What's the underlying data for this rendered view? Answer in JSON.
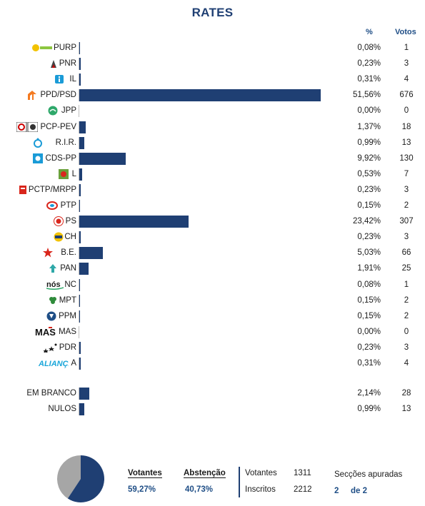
{
  "title": "RATES",
  "columns": {
    "pct": "%",
    "votes": "Votos"
  },
  "colors": {
    "bar": "#1f3f73",
    "pie_votantes": "#1f3f73",
    "pie_abstencao": "#a6a6a6"
  },
  "chart_data": {
    "type": "bar",
    "orientation": "horizontal",
    "title": "RATES",
    "categories": [
      "PURP",
      "PNR",
      "IL",
      "PPD/PSD",
      "JPP",
      "PCP-PEV",
      "R.I.R.",
      "CDS-PP",
      "L",
      "PCTP/MRPP",
      "PTP",
      "PS",
      "CH",
      "B.E.",
      "PAN",
      "NC",
      "MPT",
      "PPM",
      "MAS",
      "PDR",
      "A",
      "EM BRANCO",
      "NULOS"
    ],
    "percent_labels": [
      "0,08%",
      "0,23%",
      "0,31%",
      "51,56%",
      "0,00%",
      "1,37%",
      "0,99%",
      "9,92%",
      "0,53%",
      "0,23%",
      "0,15%",
      "23,42%",
      "0,23%",
      "5,03%",
      "1,91%",
      "0,08%",
      "0,15%",
      "0,15%",
      "0,00%",
      "0,23%",
      "0,31%",
      "2,14%",
      "0,99%"
    ],
    "values": [
      0.08,
      0.23,
      0.31,
      51.56,
      0.0,
      1.37,
      0.99,
      9.92,
      0.53,
      0.23,
      0.15,
      23.42,
      0.23,
      5.03,
      1.91,
      0.08,
      0.15,
      0.15,
      0.0,
      0.23,
      0.31,
      2.14,
      0.99
    ],
    "votes": [
      1,
      3,
      4,
      676,
      0,
      18,
      13,
      130,
      7,
      3,
      2,
      307,
      3,
      66,
      25,
      1,
      2,
      2,
      0,
      3,
      4,
      28,
      13
    ],
    "xlim": [
      0,
      100
    ],
    "logos": [
      "sun-flower-logo",
      "flame-logo",
      "info-logo",
      "arrow-logo",
      "circle-logo",
      "hammer-sickle-logo",
      "ring-logo",
      "cds-logo",
      "flower-logo",
      "flag-logo",
      "swirl-logo",
      "rose-logo",
      "ch-logo",
      "star-logo",
      "tree-logo",
      "nos-logo",
      "clover-logo",
      "ppm-logo",
      "mas-logo",
      "stars-logo",
      "alianca-logo"
    ],
    "logo_texts": {
      "mas": "MAS",
      "nc": "nós",
      "alianca": "ALIANÇA"
    }
  },
  "summary": {
    "votantes_label": "Votantes",
    "votantes_pct": "59,27%",
    "abstencao_label": "Abstenção",
    "abstencao_pct": "40,73%",
    "votantes_count_label": "Votantes",
    "votantes_count": "1311",
    "inscritos_label": "Inscritos",
    "inscritos_count": "2212",
    "seccoes_label": "Secções apuradas",
    "seccoes_done": "2",
    "seccoes_total": "de 2",
    "pie": {
      "votantes": 59.27,
      "abstencao": 40.73
    }
  }
}
